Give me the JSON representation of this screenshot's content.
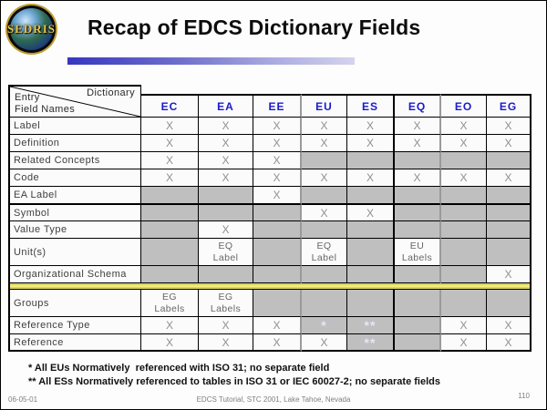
{
  "slide": {
    "title": "Recap of EDCS Dictionary Fields",
    "logo_text": "SEDRIS",
    "footnotes": [
      "* All EUs Normatively  referenced with ISO 31; no separate field",
      "** All ESs Normatively referenced to tables in ISO 31 or IEC 60027-2; no separate fields"
    ],
    "footer": {
      "date": "06-05-01",
      "center": "EDCS Tutorial, STC 2001, Lake Tahoe, Nevada",
      "page": "110"
    }
  },
  "table": {
    "corner": {
      "top_right": "Dictionary",
      "bottom_left": "Entry\nField Names"
    },
    "columns": [
      "EC",
      "EA",
      "EE",
      "EU",
      "ES",
      "EQ",
      "EO",
      "EG"
    ],
    "rows": [
      {
        "label": "Label",
        "cells": [
          "X",
          "X",
          "X",
          "X",
          "X",
          "X",
          "X",
          "X"
        ]
      },
      {
        "label": "Definition",
        "cells": [
          "X",
          "X",
          "X",
          "X",
          "X",
          "X",
          "X",
          "X"
        ]
      },
      {
        "label": "Related Concepts",
        "cells": [
          "X",
          "X",
          "X",
          "",
          "",
          "",
          "",
          ""
        ]
      },
      {
        "label": "Code",
        "cells": [
          "X",
          "X",
          "X",
          "X",
          "X",
          "X",
          "X",
          "X"
        ]
      },
      {
        "label": "EA Label",
        "cells": [
          "",
          "",
          "X",
          "",
          "",
          "",
          "",
          ""
        ]
      },
      {
        "label": "Symbol",
        "cells": [
          "",
          "",
          "",
          "X",
          "X",
          "",
          "",
          ""
        ],
        "thick_top": true
      },
      {
        "label": "Value Type",
        "cells": [
          "",
          "X",
          "",
          "",
          "",
          "",
          "",
          ""
        ]
      },
      {
        "label": "Unit(s)",
        "cells": [
          "",
          "EQ\nLabel",
          "",
          "EQ\nLabel",
          "",
          "EU\nLabels",
          "",
          ""
        ]
      },
      {
        "label": "Organizational Schema",
        "cells": [
          "",
          "",
          "",
          "",
          "",
          "",
          "",
          "X"
        ]
      },
      {
        "separator": true
      },
      {
        "label": "Groups",
        "cells": [
          "EG\nLabels",
          "EG\nLabels",
          "",
          "",
          "",
          "",
          "",
          ""
        ]
      },
      {
        "label": "Reference Type",
        "cells": [
          "X",
          "X",
          "X",
          "*",
          "**",
          "",
          "X",
          "X"
        ]
      },
      {
        "label": "Reference",
        "cells": [
          "X",
          "X",
          "X",
          "X",
          "**",
          "",
          "X",
          "X"
        ]
      }
    ]
  },
  "colors": {
    "header_blue": "#1a1acc",
    "cell_gray": "#bfbfbf",
    "separator_yellow": "#f2ee7d",
    "gradient_start": "#3636c0",
    "gradient_end": "#d4d4ee",
    "logo_gold": "#bf9b30",
    "x_mark": "#8f8f8f"
  }
}
